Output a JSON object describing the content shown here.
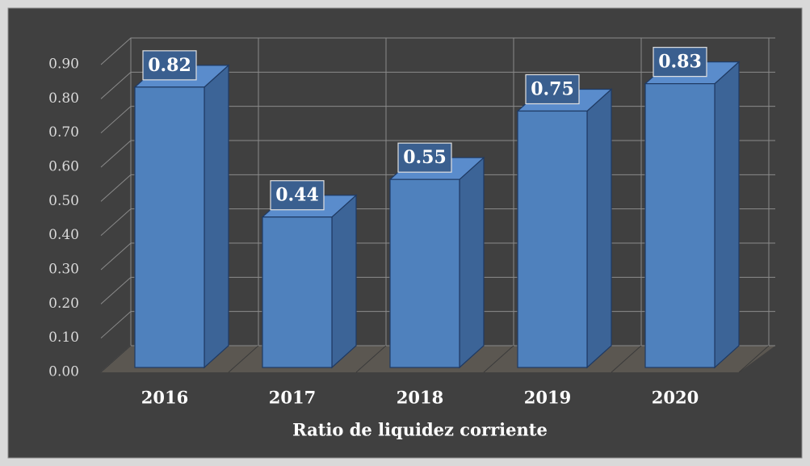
{
  "chart_data": {
    "type": "bar3d",
    "xlabel": "Ratio de liquidez corriente",
    "categories": [
      "2016",
      "2017",
      "2018",
      "2019",
      "2020"
    ],
    "values": [
      0.82,
      0.44,
      0.55,
      0.75,
      0.83
    ],
    "color": "#4f81bd",
    "ylim": [
      0,
      0.9
    ],
    "yticks": [
      {
        "value": 0,
        "label": "0.00"
      },
      {
        "value": 0.1,
        "label": "0.10"
      },
      {
        "value": 0.2,
        "label": "0.20"
      },
      {
        "value": 0.3,
        "label": "0.30"
      },
      {
        "value": 0.4,
        "label": "0.40"
      },
      {
        "value": 0.5,
        "label": "0.50"
      },
      {
        "value": 0.6,
        "label": "0.60"
      },
      {
        "value": 0.7,
        "label": "0.70"
      },
      {
        "value": 0.8,
        "label": "0.80"
      },
      {
        "value": 0.9,
        "label": "0.90"
      }
    ],
    "grid": true
  }
}
